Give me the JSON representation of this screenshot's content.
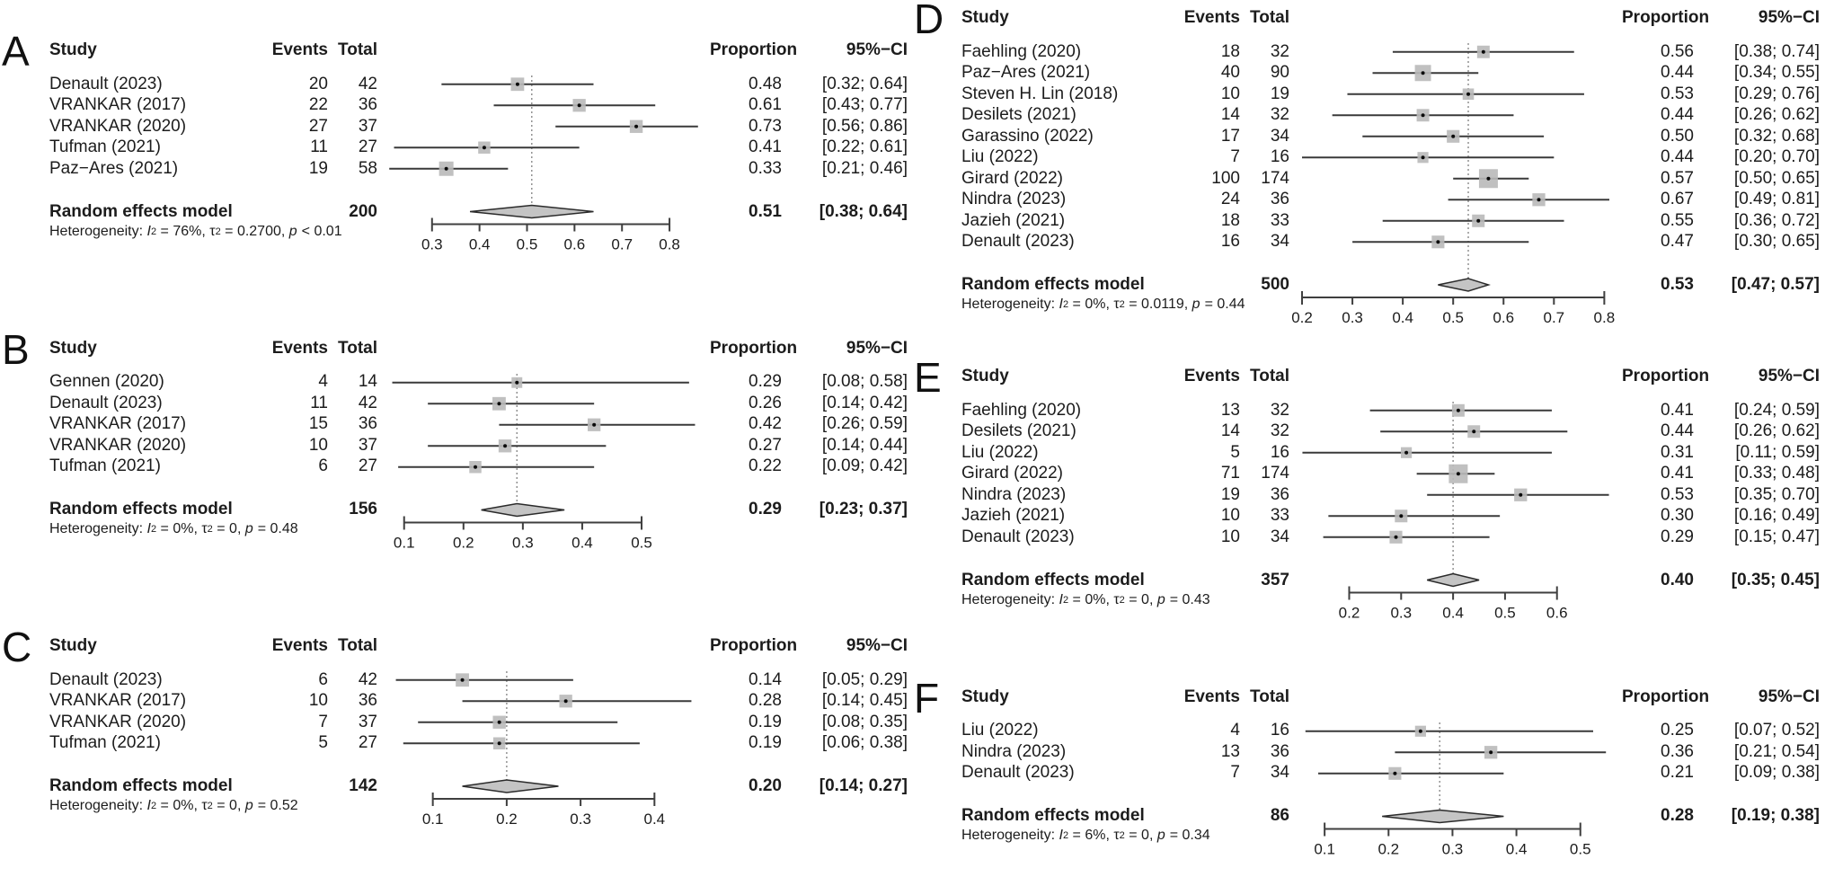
{
  "labels": {
    "study": "Study",
    "events": "Events",
    "total": "Total",
    "proportion": "Proportion",
    "ci": "95%−CI",
    "pooled": "Random effects model",
    "heterogeneity": "Heterogeneity: ",
    "i_sym": "I",
    "sup_two": "2",
    "tau_sym": "τ",
    "p_sym": "p",
    "eq": " = ",
    "comma_sep": ", "
  },
  "colors": {
    "text": "#1c1c1c",
    "ci_line": "#3a3a3a",
    "square_fill": "#b9b9b9",
    "point": "#0a0a0a",
    "diamond_fill": "#c4c4c4",
    "diamond_stroke": "#2b2b2b",
    "dotted_line": "#8a8a8a",
    "axis": "#3f3f3f"
  },
  "chart_data": [
    {
      "type": "forest",
      "panel": "A",
      "studies": [
        {
          "name": "Denault (2023)",
          "events": 20,
          "total": 42,
          "prop": 0.48,
          "lo": 0.32,
          "hi": 0.64,
          "prop_label": "0.48",
          "ci_label": "[0.32; 0.64]"
        },
        {
          "name": "VRANKAR (2017)",
          "events": 22,
          "total": 36,
          "prop": 0.61,
          "lo": 0.43,
          "hi": 0.77,
          "prop_label": "0.61",
          "ci_label": "[0.43; 0.77]"
        },
        {
          "name": "VRANKAR (2020)",
          "events": 27,
          "total": 37,
          "prop": 0.73,
          "lo": 0.56,
          "hi": 0.86,
          "prop_label": "0.73",
          "ci_label": "[0.56; 0.86]"
        },
        {
          "name": "Tufman (2021)",
          "events": 11,
          "total": 27,
          "prop": 0.41,
          "lo": 0.22,
          "hi": 0.61,
          "prop_label": "0.41",
          "ci_label": "[0.22; 0.61]"
        },
        {
          "name": "Paz−Ares (2021)",
          "events": 19,
          "total": 58,
          "prop": 0.33,
          "lo": 0.21,
          "hi": 0.46,
          "prop_label": "0.33",
          "ci_label": "[0.21; 0.46]"
        }
      ],
      "pooled": {
        "total": 200,
        "prop": 0.51,
        "lo": 0.38,
        "hi": 0.64,
        "prop_label": "0.51",
        "ci_label": "[0.38; 0.64]"
      },
      "heterogeneity": {
        "i2": "76%",
        "tau2": "0.2700",
        "p": "< 0.01"
      },
      "axis_ticks": [
        0.3,
        0.4,
        0.5,
        0.6,
        0.7,
        0.8
      ]
    },
    {
      "type": "forest",
      "panel": "B",
      "studies": [
        {
          "name": "Gennen (2020)",
          "events": 4,
          "total": 14,
          "prop": 0.29,
          "lo": 0.08,
          "hi": 0.58,
          "prop_label": "0.29",
          "ci_label": "[0.08; 0.58]"
        },
        {
          "name": "Denault (2023)",
          "events": 11,
          "total": 42,
          "prop": 0.26,
          "lo": 0.14,
          "hi": 0.42,
          "prop_label": "0.26",
          "ci_label": "[0.14; 0.42]"
        },
        {
          "name": "VRANKAR (2017)",
          "events": 15,
          "total": 36,
          "prop": 0.42,
          "lo": 0.26,
          "hi": 0.59,
          "prop_label": "0.42",
          "ci_label": "[0.26; 0.59]"
        },
        {
          "name": "VRANKAR (2020)",
          "events": 10,
          "total": 37,
          "prop": 0.27,
          "lo": 0.14,
          "hi": 0.44,
          "prop_label": "0.27",
          "ci_label": "[0.14; 0.44]"
        },
        {
          "name": "Tufman (2021)",
          "events": 6,
          "total": 27,
          "prop": 0.22,
          "lo": 0.09,
          "hi": 0.42,
          "prop_label": "0.22",
          "ci_label": "[0.09; 0.42]"
        }
      ],
      "pooled": {
        "total": 156,
        "prop": 0.29,
        "lo": 0.23,
        "hi": 0.37,
        "prop_label": "0.29",
        "ci_label": "[0.23; 0.37]"
      },
      "heterogeneity": {
        "i2": "0%",
        "tau2": "0",
        "p": "= 0.48"
      },
      "axis_ticks": [
        0.1,
        0.2,
        0.3,
        0.4,
        0.5
      ]
    },
    {
      "type": "forest",
      "panel": "C",
      "studies": [
        {
          "name": "Denault (2023)",
          "events": 6,
          "total": 42,
          "prop": 0.14,
          "lo": 0.05,
          "hi": 0.29,
          "prop_label": "0.14",
          "ci_label": "[0.05; 0.29]"
        },
        {
          "name": "VRANKAR (2017)",
          "events": 10,
          "total": 36,
          "prop": 0.28,
          "lo": 0.14,
          "hi": 0.45,
          "prop_label": "0.28",
          "ci_label": "[0.14; 0.45]"
        },
        {
          "name": "VRANKAR (2020)",
          "events": 7,
          "total": 37,
          "prop": 0.19,
          "lo": 0.08,
          "hi": 0.35,
          "prop_label": "0.19",
          "ci_label": "[0.08; 0.35]"
        },
        {
          "name": "Tufman (2021)",
          "events": 5,
          "total": 27,
          "prop": 0.19,
          "lo": 0.06,
          "hi": 0.38,
          "prop_label": "0.19",
          "ci_label": "[0.06; 0.38]"
        }
      ],
      "pooled": {
        "total": 142,
        "prop": 0.2,
        "lo": 0.14,
        "hi": 0.27,
        "prop_label": "0.20",
        "ci_label": "[0.14; 0.27]"
      },
      "heterogeneity": {
        "i2": "0%",
        "tau2": "0",
        "p": "= 0.52"
      },
      "axis_ticks": [
        0.1,
        0.2,
        0.3,
        0.4
      ]
    },
    {
      "type": "forest",
      "panel": "D",
      "studies": [
        {
          "name": "Faehling (2020)",
          "events": 18,
          "total": 32,
          "prop": 0.56,
          "lo": 0.38,
          "hi": 0.74,
          "prop_label": "0.56",
          "ci_label": "[0.38; 0.74]"
        },
        {
          "name": "Paz−Ares (2021)",
          "events": 40,
          "total": 90,
          "prop": 0.44,
          "lo": 0.34,
          "hi": 0.55,
          "prop_label": "0.44",
          "ci_label": "[0.34; 0.55]"
        },
        {
          "name": "Steven H. Lin (2018)",
          "events": 10,
          "total": 19,
          "prop": 0.53,
          "lo": 0.29,
          "hi": 0.76,
          "prop_label": "0.53",
          "ci_label": "[0.29; 0.76]"
        },
        {
          "name": "Desilets (2021)",
          "events": 14,
          "total": 32,
          "prop": 0.44,
          "lo": 0.26,
          "hi": 0.62,
          "prop_label": "0.44",
          "ci_label": "[0.26; 0.62]"
        },
        {
          "name": "Garassino (2022)",
          "events": 17,
          "total": 34,
          "prop": 0.5,
          "lo": 0.32,
          "hi": 0.68,
          "prop_label": "0.50",
          "ci_label": "[0.32; 0.68]"
        },
        {
          "name": "Liu (2022)",
          "events": 7,
          "total": 16,
          "prop": 0.44,
          "lo": 0.2,
          "hi": 0.7,
          "prop_label": "0.44",
          "ci_label": "[0.20; 0.70]"
        },
        {
          "name": "Girard (2022)",
          "events": 100,
          "total": 174,
          "prop": 0.57,
          "lo": 0.5,
          "hi": 0.65,
          "prop_label": "0.57",
          "ci_label": "[0.50; 0.65]"
        },
        {
          "name": "Nindra (2023)",
          "events": 24,
          "total": 36,
          "prop": 0.67,
          "lo": 0.49,
          "hi": 0.81,
          "prop_label": "0.67",
          "ci_label": "[0.49; 0.81]"
        },
        {
          "name": "Jazieh (2021)",
          "events": 18,
          "total": 33,
          "prop": 0.55,
          "lo": 0.36,
          "hi": 0.72,
          "prop_label": "0.55",
          "ci_label": "[0.36; 0.72]"
        },
        {
          "name": "Denault (2023)",
          "events": 16,
          "total": 34,
          "prop": 0.47,
          "lo": 0.3,
          "hi": 0.65,
          "prop_label": "0.47",
          "ci_label": "[0.30; 0.65]"
        }
      ],
      "pooled": {
        "total": 500,
        "prop": 0.53,
        "lo": 0.47,
        "hi": 0.57,
        "prop_label": "0.53",
        "ci_label": "[0.47; 0.57]"
      },
      "heterogeneity": {
        "i2": "0%",
        "tau2": "0.0119",
        "p": "= 0.44"
      },
      "axis_ticks": [
        0.2,
        0.3,
        0.4,
        0.5,
        0.6,
        0.7,
        0.8
      ]
    },
    {
      "type": "forest",
      "panel": "E",
      "studies": [
        {
          "name": "Faehling (2020)",
          "events": 13,
          "total": 32,
          "prop": 0.41,
          "lo": 0.24,
          "hi": 0.59,
          "prop_label": "0.41",
          "ci_label": "[0.24; 0.59]"
        },
        {
          "name": "Desilets (2021)",
          "events": 14,
          "total": 32,
          "prop": 0.44,
          "lo": 0.26,
          "hi": 0.62,
          "prop_label": "0.44",
          "ci_label": "[0.26; 0.62]"
        },
        {
          "name": "Liu (2022)",
          "events": 5,
          "total": 16,
          "prop": 0.31,
          "lo": 0.11,
          "hi": 0.59,
          "prop_label": "0.31",
          "ci_label": "[0.11; 0.59]"
        },
        {
          "name": "Girard (2022)",
          "events": 71,
          "total": 174,
          "prop": 0.41,
          "lo": 0.33,
          "hi": 0.48,
          "prop_label": "0.41",
          "ci_label": "[0.33; 0.48]"
        },
        {
          "name": "Nindra (2023)",
          "events": 19,
          "total": 36,
          "prop": 0.53,
          "lo": 0.35,
          "hi": 0.7,
          "prop_label": "0.53",
          "ci_label": "[0.35; 0.70]"
        },
        {
          "name": "Jazieh (2021)",
          "events": 10,
          "total": 33,
          "prop": 0.3,
          "lo": 0.16,
          "hi": 0.49,
          "prop_label": "0.30",
          "ci_label": "[0.16; 0.49]"
        },
        {
          "name": "Denault (2023)",
          "events": 10,
          "total": 34,
          "prop": 0.29,
          "lo": 0.15,
          "hi": 0.47,
          "prop_label": "0.29",
          "ci_label": "[0.15; 0.47]"
        }
      ],
      "pooled": {
        "total": 357,
        "prop": 0.4,
        "lo": 0.35,
        "hi": 0.45,
        "prop_label": "0.40",
        "ci_label": "[0.35; 0.45]"
      },
      "heterogeneity": {
        "i2": "0%",
        "tau2": "0",
        "p": "= 0.43"
      },
      "axis_ticks": [
        0.2,
        0.3,
        0.4,
        0.5,
        0.6
      ]
    },
    {
      "type": "forest",
      "panel": "F",
      "studies": [
        {
          "name": "Liu (2022)",
          "events": 4,
          "total": 16,
          "prop": 0.25,
          "lo": 0.07,
          "hi": 0.52,
          "prop_label": "0.25",
          "ci_label": "[0.07; 0.52]"
        },
        {
          "name": "Nindra (2023)",
          "events": 13,
          "total": 36,
          "prop": 0.36,
          "lo": 0.21,
          "hi": 0.54,
          "prop_label": "0.36",
          "ci_label": "[0.21; 0.54]"
        },
        {
          "name": "Denault (2023)",
          "events": 7,
          "total": 34,
          "prop": 0.21,
          "lo": 0.09,
          "hi": 0.38,
          "prop_label": "0.21",
          "ci_label": "[0.09; 0.38]"
        }
      ],
      "pooled": {
        "total": 86,
        "prop": 0.28,
        "lo": 0.19,
        "hi": 0.38,
        "prop_label": "0.28",
        "ci_label": "[0.19; 0.38]"
      },
      "heterogeneity": {
        "i2": "6%",
        "tau2": "0",
        "p": "= 0.34"
      },
      "axis_ticks": [
        0.1,
        0.2,
        0.3,
        0.4,
        0.5
      ]
    }
  ]
}
